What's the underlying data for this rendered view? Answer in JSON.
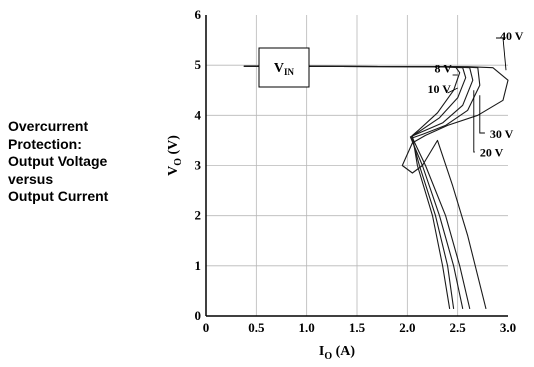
{
  "side_label": {
    "lines": [
      "Overcurrent",
      "Protection:",
      "Output Voltage",
      "versus",
      "Output Current"
    ]
  },
  "chart_data": {
    "type": "line",
    "xlabel": {
      "main": "I",
      "sub": "O",
      "unit": " (A)"
    },
    "ylabel": {
      "main": "V",
      "sub": "O",
      "unit": " (V)"
    },
    "xlim": [
      0,
      3.0
    ],
    "ylim": [
      0,
      6
    ],
    "x_ticks": [
      {
        "value": 0,
        "label": "0"
      },
      {
        "value": 0.5,
        "label": "0.5"
      },
      {
        "value": 1.0,
        "label": "1.0"
      },
      {
        "value": 1.5,
        "label": "1.5"
      },
      {
        "value": 2.0,
        "label": "2.0"
      },
      {
        "value": 2.5,
        "label": "2.5"
      },
      {
        "value": 3.0,
        "label": "3.0"
      }
    ],
    "y_ticks": [
      {
        "value": 0,
        "label": "0"
      },
      {
        "value": 1,
        "label": "1"
      },
      {
        "value": 2,
        "label": "2"
      },
      {
        "value": 3,
        "label": "3"
      },
      {
        "value": 4,
        "label": "4"
      },
      {
        "value": 5,
        "label": "5"
      },
      {
        "value": 6,
        "label": "6"
      }
    ],
    "grid": true,
    "line_color": "#1a1a1a",
    "legend_box": {
      "main": "V",
      "sub": "IN"
    },
    "series": [
      {
        "name": "8 V",
        "points": [
          [
            0.38,
            4.98
          ],
          [
            2.2,
            4.97
          ],
          [
            2.48,
            4.96
          ],
          [
            2.52,
            4.85
          ],
          [
            2.46,
            4.5
          ],
          [
            2.3,
            4.05
          ],
          [
            2.12,
            3.72
          ],
          [
            2.05,
            3.6
          ],
          [
            2.1,
            3.0
          ],
          [
            2.25,
            2.0
          ],
          [
            2.35,
            1.0
          ],
          [
            2.42,
            0.15
          ]
        ]
      },
      {
        "name": "10 V",
        "points": [
          [
            0.38,
            4.98
          ],
          [
            2.3,
            4.97
          ],
          [
            2.55,
            4.95
          ],
          [
            2.58,
            4.75
          ],
          [
            2.5,
            4.35
          ],
          [
            2.32,
            3.95
          ],
          [
            2.12,
            3.68
          ],
          [
            2.04,
            3.58
          ],
          [
            2.12,
            3.0
          ],
          [
            2.28,
            2.0
          ],
          [
            2.4,
            1.0
          ],
          [
            2.46,
            0.15
          ]
        ]
      },
      {
        "name": "20 V",
        "points": [
          [
            0.38,
            4.98
          ],
          [
            2.4,
            4.97
          ],
          [
            2.62,
            4.95
          ],
          [
            2.65,
            4.7
          ],
          [
            2.55,
            4.2
          ],
          [
            2.35,
            3.85
          ],
          [
            2.12,
            3.65
          ],
          [
            2.03,
            3.57
          ],
          [
            2.15,
            3.0
          ],
          [
            2.32,
            2.0
          ],
          [
            2.46,
            1.0
          ],
          [
            2.55,
            0.15
          ]
        ]
      },
      {
        "name": "30 V",
        "points": [
          [
            0.38,
            4.98
          ],
          [
            2.5,
            4.97
          ],
          [
            2.7,
            4.95
          ],
          [
            2.72,
            4.6
          ],
          [
            2.6,
            4.1
          ],
          [
            2.38,
            3.8
          ],
          [
            2.15,
            3.62
          ],
          [
            2.05,
            3.55
          ],
          [
            2.18,
            3.0
          ],
          [
            2.38,
            2.0
          ],
          [
            2.52,
            1.0
          ],
          [
            2.62,
            0.15
          ]
        ]
      },
      {
        "name": "40 V",
        "points": [
          [
            0.38,
            4.98
          ],
          [
            2.6,
            4.97
          ],
          [
            2.85,
            4.95
          ],
          [
            3.0,
            4.7
          ],
          [
            2.95,
            4.3
          ],
          [
            2.7,
            4.0
          ],
          [
            2.4,
            3.8
          ],
          [
            2.18,
            3.6
          ],
          [
            2.05,
            3.45
          ],
          [
            1.95,
            3.0
          ],
          [
            2.05,
            2.85
          ],
          [
            2.15,
            3.0
          ],
          [
            2.3,
            3.5
          ],
          [
            2.45,
            2.6
          ],
          [
            2.6,
            1.6
          ],
          [
            2.78,
            0.15
          ]
        ]
      }
    ],
    "annotations": [
      {
        "text": "40 V",
        "x": 2.92,
        "y": 5.5
      },
      {
        "text": "8 V",
        "x": 2.27,
        "y": 4.85
      },
      {
        "text": "10 V",
        "x": 2.2,
        "y": 4.45
      },
      {
        "text": "30 V",
        "x": 2.82,
        "y": 3.55
      },
      {
        "text": "20 V",
        "x": 2.72,
        "y": 3.18
      }
    ]
  }
}
